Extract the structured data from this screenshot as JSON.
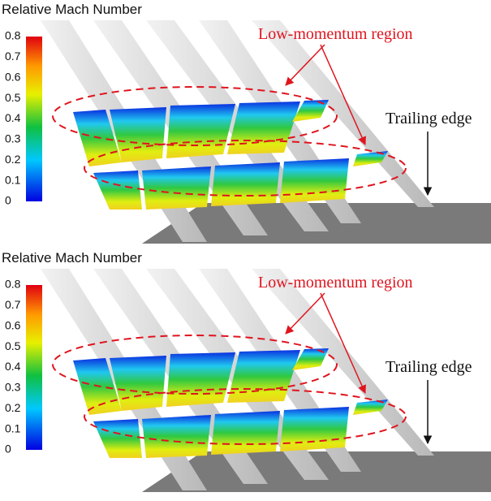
{
  "panels": [
    {
      "colorbar": {
        "title": "Relative Mach Number",
        "ticks": [
          0.8,
          0.7,
          0.6,
          0.5,
          0.4,
          0.3,
          0.2,
          0.1,
          0
        ]
      },
      "annotations": {
        "low_momentum": "Low-momentum region",
        "trailing_edge": "Trailing edge"
      }
    },
    {
      "colorbar": {
        "title": "Relative Mach Number",
        "ticks": [
          0.8,
          0.7,
          0.6,
          0.5,
          0.4,
          0.3,
          0.2,
          0.1,
          0
        ]
      },
      "annotations": {
        "low_momentum": "Low-momentum region",
        "trailing_edge": "Trailing edge"
      }
    }
  ]
}
